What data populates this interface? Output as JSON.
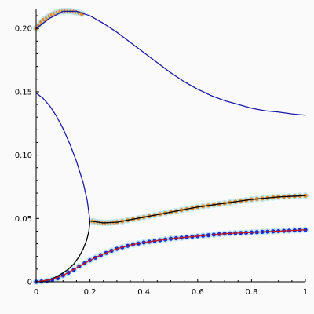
{
  "chart_data": {
    "type": "line",
    "title": "",
    "xlabel": "",
    "ylabel": "",
    "xlim": [
      0,
      1
    ],
    "ylim": [
      0,
      0.215
    ],
    "grid": false,
    "x_ticks": [
      0,
      0.2,
      0.4,
      0.6,
      0.8,
      1
    ],
    "x_tick_labels": [
      "0",
      "0.2",
      "0.4",
      "0.6",
      "0.8",
      "1"
    ],
    "y_ticks": [
      0,
      0.05,
      0.1,
      0.15,
      0.2
    ],
    "y_tick_labels": [
      "0",
      "0.05",
      "0.10",
      "0.15",
      "0.20"
    ],
    "series": [
      {
        "color": "#1a1aa8",
        "style": "line",
        "points": [
          [
            0.0,
            0.2
          ],
          [
            0.05,
            0.208
          ],
          [
            0.1,
            0.2135
          ],
          [
            0.15,
            0.2135
          ],
          [
            0.2,
            0.21
          ],
          [
            0.25,
            0.204
          ],
          [
            0.3,
            0.197
          ],
          [
            0.35,
            0.189
          ],
          [
            0.4,
            0.181
          ],
          [
            0.45,
            0.173
          ],
          [
            0.5,
            0.165
          ],
          [
            0.55,
            0.158
          ],
          [
            0.6,
            0.152
          ],
          [
            0.65,
            0.147
          ],
          [
            0.7,
            0.143
          ],
          [
            0.75,
            0.14
          ],
          [
            0.8,
            0.137
          ],
          [
            0.85,
            0.135
          ],
          [
            0.9,
            0.134
          ],
          [
            0.95,
            0.1325
          ],
          [
            1.0,
            0.1315
          ]
        ]
      },
      {
        "color": "#1a1aa8",
        "style": "line",
        "points": [
          [
            0.0,
            0.149
          ],
          [
            0.025,
            0.145
          ],
          [
            0.05,
            0.139
          ],
          [
            0.075,
            0.131
          ],
          [
            0.1,
            0.121
          ],
          [
            0.125,
            0.109
          ],
          [
            0.15,
            0.095
          ],
          [
            0.175,
            0.078
          ],
          [
            0.19,
            0.064
          ],
          [
            0.2,
            0.048
          ]
        ]
      },
      {
        "color": "#000000",
        "style": "line",
        "points": [
          [
            0.2,
            0.048
          ],
          [
            0.196,
            0.04
          ],
          [
            0.188,
            0.033
          ],
          [
            0.175,
            0.026
          ],
          [
            0.16,
            0.02
          ],
          [
            0.14,
            0.014
          ],
          [
            0.12,
            0.01
          ],
          [
            0.1,
            0.007
          ],
          [
            0.08,
            0.0045
          ],
          [
            0.06,
            0.0025
          ],
          [
            0.04,
            0.0012
          ],
          [
            0.02,
            0.0004
          ],
          [
            0.0,
            0.0
          ]
        ]
      },
      {
        "color": "#000000",
        "style": "line",
        "points": [
          [
            0.2,
            0.048
          ],
          [
            0.25,
            0.0465
          ],
          [
            0.3,
            0.047
          ],
          [
            0.35,
            0.049
          ],
          [
            0.4,
            0.051
          ],
          [
            0.45,
            0.053
          ],
          [
            0.5,
            0.055
          ],
          [
            0.55,
            0.057
          ],
          [
            0.6,
            0.059
          ],
          [
            0.65,
            0.0605
          ],
          [
            0.7,
            0.062
          ],
          [
            0.75,
            0.0635
          ],
          [
            0.8,
            0.065
          ],
          [
            0.85,
            0.066
          ],
          [
            0.9,
            0.067
          ],
          [
            0.95,
            0.0675
          ],
          [
            1.0,
            0.068
          ]
        ]
      },
      {
        "color": "#cc1a1a",
        "style": "line",
        "points": [
          [
            0.0,
            0.0
          ],
          [
            0.05,
            0.0015
          ],
          [
            0.1,
            0.005
          ],
          [
            0.15,
            0.011
          ],
          [
            0.2,
            0.017
          ],
          [
            0.25,
            0.022
          ],
          [
            0.3,
            0.026
          ],
          [
            0.35,
            0.029
          ],
          [
            0.4,
            0.031
          ],
          [
            0.45,
            0.0325
          ],
          [
            0.5,
            0.034
          ],
          [
            0.55,
            0.035
          ],
          [
            0.6,
            0.036
          ],
          [
            0.65,
            0.037
          ],
          [
            0.7,
            0.038
          ],
          [
            0.75,
            0.0385
          ],
          [
            0.8,
            0.039
          ],
          [
            0.85,
            0.0395
          ],
          [
            0.9,
            0.04
          ],
          [
            0.95,
            0.0405
          ],
          [
            1.0,
            0.041
          ]
        ]
      },
      {
        "color": "#e08a2a",
        "style": "markers",
        "points": [
          [
            0.0,
            0.2
          ],
          [
            0.01,
            0.2025
          ],
          [
            0.02,
            0.205
          ],
          [
            0.03,
            0.207
          ],
          [
            0.04,
            0.2085
          ],
          [
            0.05,
            0.21
          ],
          [
            0.06,
            0.211
          ],
          [
            0.07,
            0.212
          ],
          [
            0.08,
            0.2128
          ],
          [
            0.09,
            0.2133
          ],
          [
            0.1,
            0.2136
          ],
          [
            0.11,
            0.2137
          ],
          [
            0.12,
            0.2137
          ],
          [
            0.13,
            0.2135
          ],
          [
            0.14,
            0.2132
          ],
          [
            0.15,
            0.2128
          ],
          [
            0.16,
            0.2122
          ],
          [
            0.17,
            0.2115
          ]
        ]
      },
      {
        "color": "#e08a2a",
        "style": "markers",
        "points": [
          [
            0.21,
            0.0478
          ],
          [
            0.22,
            0.0473
          ],
          [
            0.23,
            0.047
          ],
          [
            0.24,
            0.0467
          ],
          [
            0.25,
            0.0466
          ],
          [
            0.26,
            0.0465
          ],
          [
            0.27,
            0.0466
          ],
          [
            0.28,
            0.0468
          ],
          [
            0.29,
            0.047
          ],
          [
            0.3,
            0.0472
          ],
          [
            0.32,
            0.0478
          ],
          [
            0.34,
            0.0486
          ],
          [
            0.36,
            0.0494
          ],
          [
            0.38,
            0.0502
          ],
          [
            0.4,
            0.051
          ],
          [
            0.42,
            0.0518
          ],
          [
            0.44,
            0.0526
          ],
          [
            0.46,
            0.0534
          ],
          [
            0.48,
            0.0542
          ],
          [
            0.5,
            0.055
          ],
          [
            0.52,
            0.0558
          ],
          [
            0.54,
            0.0566
          ],
          [
            0.56,
            0.0574
          ],
          [
            0.58,
            0.0582
          ],
          [
            0.6,
            0.059
          ],
          [
            0.62,
            0.0596
          ],
          [
            0.64,
            0.0602
          ],
          [
            0.66,
            0.0608
          ],
          [
            0.68,
            0.0614
          ],
          [
            0.7,
            0.062
          ],
          [
            0.72,
            0.0626
          ],
          [
            0.74,
            0.0632
          ],
          [
            0.76,
            0.0638
          ],
          [
            0.78,
            0.0644
          ],
          [
            0.8,
            0.065
          ],
          [
            0.82,
            0.0654
          ],
          [
            0.84,
            0.0658
          ],
          [
            0.86,
            0.0662
          ],
          [
            0.88,
            0.0666
          ],
          [
            0.9,
            0.067
          ],
          [
            0.92,
            0.0672
          ],
          [
            0.94,
            0.0674
          ],
          [
            0.96,
            0.0676
          ],
          [
            0.98,
            0.0678
          ],
          [
            1.0,
            0.068
          ]
        ]
      },
      {
        "color": "#1a2ad8",
        "style": "markers",
        "points": [
          [
            0.0,
            0.0
          ],
          [
            0.02,
            0.0003
          ],
          [
            0.04,
            0.0008
          ],
          [
            0.06,
            0.0016
          ],
          [
            0.08,
            0.0028
          ],
          [
            0.1,
            0.005
          ],
          [
            0.12,
            0.0072
          ],
          [
            0.14,
            0.0095
          ],
          [
            0.16,
            0.0122
          ],
          [
            0.18,
            0.0146
          ],
          [
            0.2,
            0.017
          ],
          [
            0.22,
            0.019
          ],
          [
            0.24,
            0.021
          ],
          [
            0.26,
            0.0228
          ],
          [
            0.28,
            0.0245
          ],
          [
            0.3,
            0.026
          ],
          [
            0.32,
            0.0272
          ],
          [
            0.34,
            0.0284
          ],
          [
            0.36,
            0.0294
          ],
          [
            0.38,
            0.0302
          ],
          [
            0.4,
            0.031
          ],
          [
            0.42,
            0.0316
          ],
          [
            0.44,
            0.0322
          ],
          [
            0.46,
            0.0328
          ],
          [
            0.48,
            0.0334
          ],
          [
            0.5,
            0.034
          ],
          [
            0.52,
            0.0344
          ],
          [
            0.54,
            0.0348
          ],
          [
            0.56,
            0.0352
          ],
          [
            0.58,
            0.0356
          ],
          [
            0.6,
            0.036
          ],
          [
            0.62,
            0.0364
          ],
          [
            0.64,
            0.0368
          ],
          [
            0.66,
            0.0372
          ],
          [
            0.68,
            0.0376
          ],
          [
            0.7,
            0.038
          ],
          [
            0.72,
            0.0382
          ],
          [
            0.74,
            0.0384
          ],
          [
            0.76,
            0.0386
          ],
          [
            0.78,
            0.0388
          ],
          [
            0.8,
            0.039
          ],
          [
            0.82,
            0.0392
          ],
          [
            0.84,
            0.0394
          ],
          [
            0.86,
            0.0396
          ],
          [
            0.88,
            0.0398
          ],
          [
            0.9,
            0.04
          ],
          [
            0.92,
            0.0402
          ],
          [
            0.94,
            0.0404
          ],
          [
            0.96,
            0.0406
          ],
          [
            0.98,
            0.0408
          ],
          [
            1.0,
            0.041
          ]
        ]
      }
    ]
  }
}
